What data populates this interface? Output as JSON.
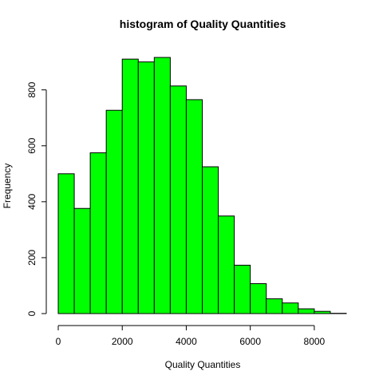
{
  "chart_data": {
    "type": "bar",
    "title": "histogram of Quality Quantities",
    "xlabel": "Quality Quantities",
    "ylabel": "Frequency",
    "bin_width": 500,
    "bins": [
      {
        "start": 0,
        "end": 500,
        "count": 500
      },
      {
        "start": 500,
        "end": 1000,
        "count": 376
      },
      {
        "start": 1000,
        "end": 1500,
        "count": 575
      },
      {
        "start": 1500,
        "end": 2000,
        "count": 727
      },
      {
        "start": 2000,
        "end": 2500,
        "count": 910
      },
      {
        "start": 2500,
        "end": 3000,
        "count": 900
      },
      {
        "start": 3000,
        "end": 3500,
        "count": 916
      },
      {
        "start": 3500,
        "end": 4000,
        "count": 814
      },
      {
        "start": 4000,
        "end": 4500,
        "count": 765
      },
      {
        "start": 4500,
        "end": 5000,
        "count": 525
      },
      {
        "start": 5000,
        "end": 5500,
        "count": 349
      },
      {
        "start": 5500,
        "end": 6000,
        "count": 173
      },
      {
        "start": 6000,
        "end": 6500,
        "count": 107
      },
      {
        "start": 6500,
        "end": 7000,
        "count": 53
      },
      {
        "start": 7000,
        "end": 7500,
        "count": 38
      },
      {
        "start": 7500,
        "end": 8000,
        "count": 17
      },
      {
        "start": 8000,
        "end": 8500,
        "count": 8
      },
      {
        "start": 8500,
        "end": 9000,
        "count": 1
      }
    ],
    "xlim": [
      0,
      9000
    ],
    "ylim": [
      0,
      916
    ],
    "x_ticks": [
      0,
      2000,
      4000,
      6000,
      8000
    ],
    "y_ticks": [
      0,
      200,
      400,
      600,
      800
    ],
    "x_tick_labels": [
      "0",
      "2000",
      "4000",
      "6000",
      "8000"
    ],
    "y_tick_labels": [
      "0",
      "200",
      "400",
      "600",
      "800"
    ],
    "bar_color": "#00ff00",
    "edge_color": "#000000",
    "grid": false,
    "legend": "none"
  }
}
